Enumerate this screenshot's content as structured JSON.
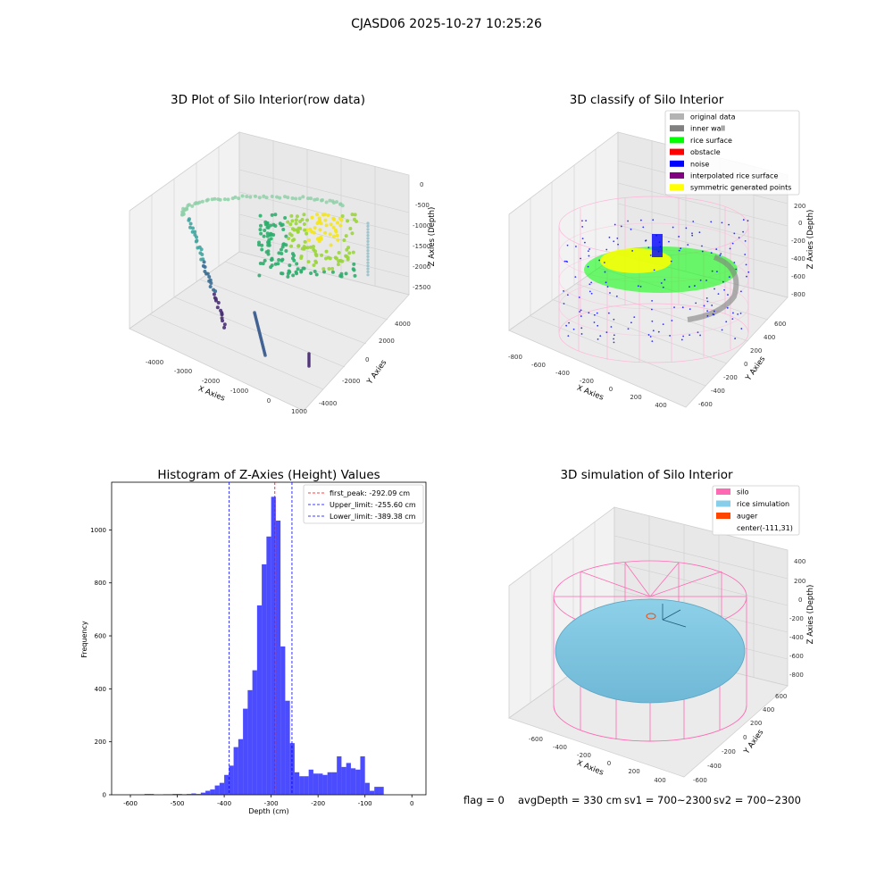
{
  "suptitle": "CJASD06 2025-10-27 10:25:26",
  "status_line": {
    "flag": "flag = 0",
    "avg_depth": "avgDepth = 330 cm",
    "sv1": "sv1 = 700~2300",
    "sv2": "sv2 = 700~2300"
  },
  "panels": {
    "raw3d": {
      "title": "3D Plot of Silo Interior(row data)",
      "xlabel": "X Axies",
      "ylabel": "Y Axies",
      "zlabel": "Z Axies (Depth)",
      "xticks": [
        "-4000",
        "-3000",
        "-2000",
        "-1000",
        "0",
        "1000"
      ],
      "yticks": [
        "-4000",
        "-2000",
        "0",
        "2000",
        "4000"
      ],
      "zticks": [
        "0",
        "-500",
        "-1000",
        "-1500",
        "-2000",
        "-2500"
      ]
    },
    "classify3d": {
      "title": "3D classify of Silo Interior",
      "xlabel": "X Axies",
      "ylabel": "Y Axies",
      "zlabel": "Z Axies (Depth)",
      "xticks": [
        "-800",
        "-600",
        "-400",
        "-200",
        "0",
        "200",
        "400"
      ],
      "yticks": [
        "-600",
        "-400",
        "-200",
        "0",
        "200",
        "400",
        "600"
      ],
      "zticks": [
        "200",
        "0",
        "-200",
        "-400",
        "-600",
        "-800"
      ],
      "legend": [
        {
          "label": "original data",
          "color": "#b3b3b3"
        },
        {
          "label": "inner wall",
          "color": "#808080"
        },
        {
          "label": "rice surface",
          "color": "#00ff00"
        },
        {
          "label": "obstacle",
          "color": "#ff0000"
        },
        {
          "label": "noise",
          "color": "#0000ff"
        },
        {
          "label": "interpolated rice surface",
          "color": "#800080"
        },
        {
          "label": "symmetric generated points",
          "color": "#ffff00"
        }
      ]
    },
    "sim3d": {
      "title": "3D simulation of Silo Interior",
      "xlabel": "X Axies",
      "ylabel": "Y Axies",
      "zlabel": "Z Axies (Depth)",
      "xticks": [
        "-600",
        "-400",
        "-200",
        "0",
        "200",
        "400"
      ],
      "yticks": [
        "-600",
        "-400",
        "-200",
        "0",
        "200",
        "400",
        "600"
      ],
      "zticks": [
        "400",
        "200",
        "0",
        "-200",
        "-400",
        "-600",
        "-800"
      ],
      "legend": [
        {
          "label": "silo",
          "color": "#ff69b4"
        },
        {
          "label": "rice simulation",
          "color": "#87ceeb"
        },
        {
          "label": "auger",
          "color": "#ff4500"
        },
        {
          "label": "center(-111,31)",
          "color": "none"
        }
      ]
    }
  },
  "chart_data": [
    {
      "type": "bar",
      "title": "Histogram of Z-Axies (Height) Values",
      "xlabel": "Depth (cm)",
      "ylabel": "Frequency",
      "xlim": [
        -640,
        30
      ],
      "ylim": [
        0,
        1180
      ],
      "xticks": [
        -600,
        -500,
        -400,
        -300,
        -200,
        -100,
        0
      ],
      "yticks": [
        0,
        200,
        400,
        600,
        800,
        1000
      ],
      "bar_color": "#0000ff",
      "bin_width": 10,
      "bins": [
        {
          "x": -600,
          "y": 0
        },
        {
          "x": -590,
          "y": 0
        },
        {
          "x": -580,
          "y": 0
        },
        {
          "x": -570,
          "y": 3
        },
        {
          "x": -560,
          "y": 3
        },
        {
          "x": -550,
          "y": 0
        },
        {
          "x": -540,
          "y": 0
        },
        {
          "x": -530,
          "y": 2
        },
        {
          "x": -520,
          "y": 2
        },
        {
          "x": -510,
          "y": 3
        },
        {
          "x": -500,
          "y": 3
        },
        {
          "x": -490,
          "y": 2
        },
        {
          "x": -480,
          "y": 3
        },
        {
          "x": -470,
          "y": 5
        },
        {
          "x": -460,
          "y": 3
        },
        {
          "x": -450,
          "y": 8
        },
        {
          "x": -440,
          "y": 15
        },
        {
          "x": -430,
          "y": 20
        },
        {
          "x": -420,
          "y": 35
        },
        {
          "x": -410,
          "y": 45
        },
        {
          "x": -400,
          "y": 75
        },
        {
          "x": -390,
          "y": 110
        },
        {
          "x": -380,
          "y": 180
        },
        {
          "x": -370,
          "y": 210
        },
        {
          "x": -360,
          "y": 325
        },
        {
          "x": -350,
          "y": 395
        },
        {
          "x": -340,
          "y": 470
        },
        {
          "x": -330,
          "y": 715
        },
        {
          "x": -320,
          "y": 870
        },
        {
          "x": -310,
          "y": 975
        },
        {
          "x": -300,
          "y": 1125
        },
        {
          "x": -290,
          "y": 1035
        },
        {
          "x": -280,
          "y": 560
        },
        {
          "x": -270,
          "y": 355
        },
        {
          "x": -260,
          "y": 195
        },
        {
          "x": -250,
          "y": 85
        },
        {
          "x": -240,
          "y": 70
        },
        {
          "x": -230,
          "y": 70
        },
        {
          "x": -220,
          "y": 95
        },
        {
          "x": -210,
          "y": 80
        },
        {
          "x": -200,
          "y": 80
        },
        {
          "x": -190,
          "y": 75
        },
        {
          "x": -180,
          "y": 85
        },
        {
          "x": -170,
          "y": 85
        },
        {
          "x": -160,
          "y": 145
        },
        {
          "x": -150,
          "y": 105
        },
        {
          "x": -140,
          "y": 120
        },
        {
          "x": -130,
          "y": 100
        },
        {
          "x": -120,
          "y": 95
        },
        {
          "x": -110,
          "y": 145
        },
        {
          "x": -100,
          "y": 45
        },
        {
          "x": -90,
          "y": 15
        },
        {
          "x": -80,
          "y": 30
        },
        {
          "x": -70,
          "y": 30
        }
      ],
      "vlines": [
        {
          "x": -292.09,
          "color": "#ff0000",
          "label": "first_peak: -292.09 cm"
        },
        {
          "x": -255.6,
          "color": "#0000ff",
          "label": "Upper_limit: -255.60 cm"
        },
        {
          "x": -389.38,
          "color": "#0000ff",
          "label": "Lower_limit: -389.38 cm"
        }
      ]
    }
  ]
}
